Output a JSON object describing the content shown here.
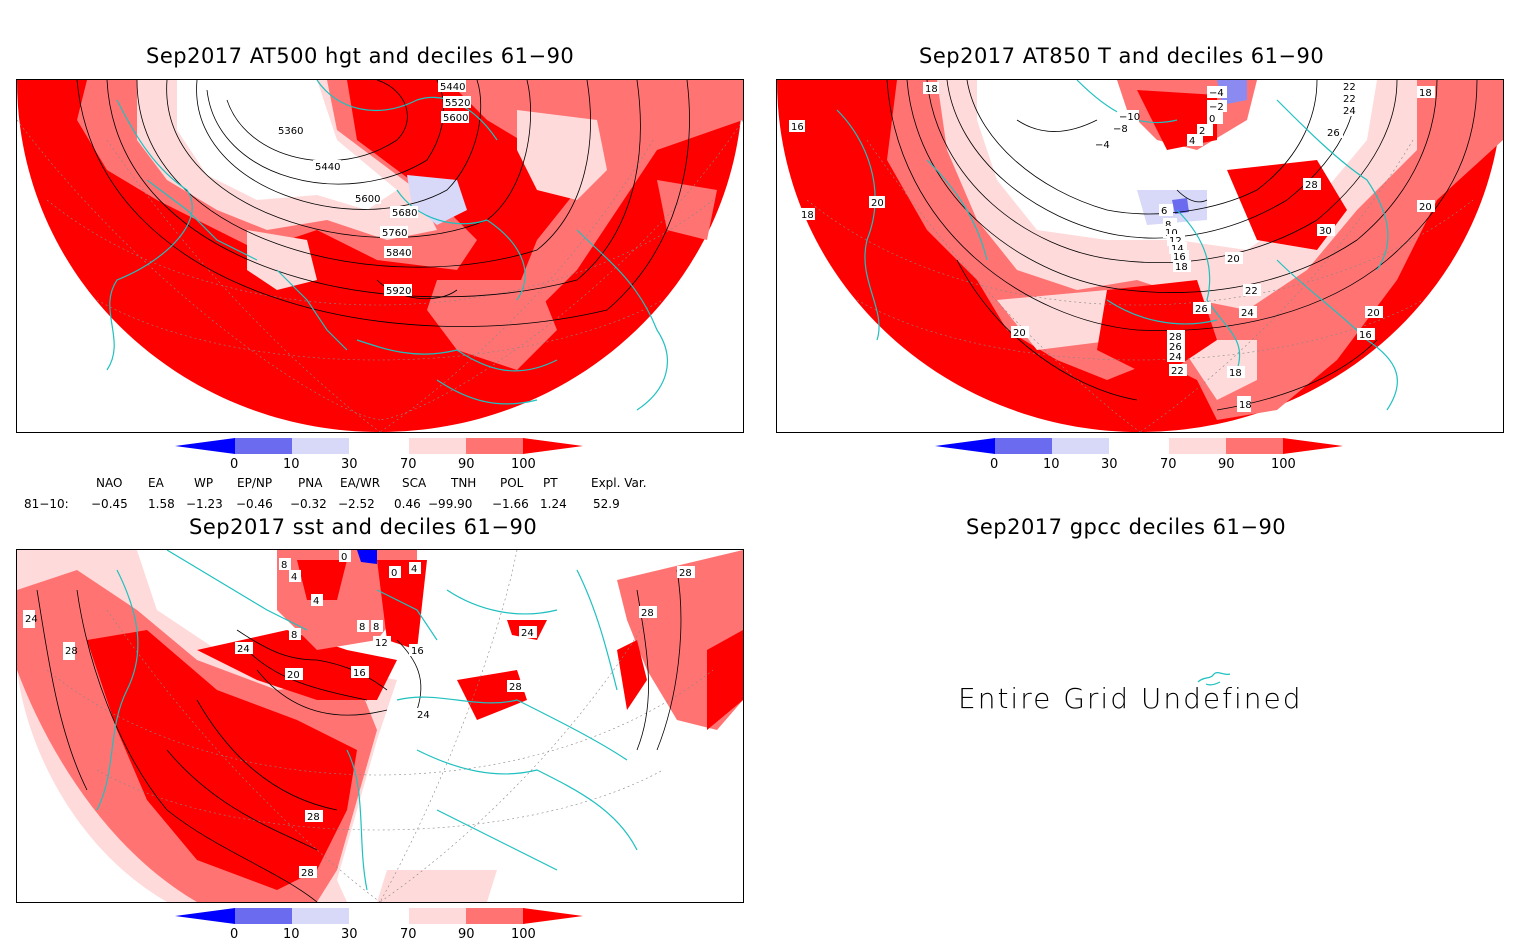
{
  "colors": {
    "d0": "#0000ff",
    "d10": "#6b6bf0",
    "d30": "#d8d8f8",
    "d70": "#ffdada",
    "d90": "#ff7373",
    "d100": "#ff0000",
    "coast": "#20c0c0",
    "contour": "#000000"
  },
  "panels": [
    {
      "title": "Sep2017 AT500 hgt and deciles 61−90",
      "contour_labels": [
        "5440",
        "5520",
        "5600",
        "5360",
        "5440",
        "5600",
        "5680",
        "5760",
        "5840",
        "5920"
      ]
    },
    {
      "title": "Sep2017 AT850 T and deciles 61−90",
      "contour_labels": [
        "18",
        "16",
        "18",
        "20",
        "−4",
        "−2",
        "0",
        "−10",
        "−8",
        "−4",
        "2",
        "4",
        "22",
        "22",
        "24",
        "26",
        "18",
        "28",
        "30",
        "6",
        "8",
        "10",
        "12",
        "14",
        "16",
        "18",
        "20",
        "22",
        "24",
        "26",
        "28",
        "26",
        "24",
        "22",
        "20",
        "18",
        "18",
        "16",
        "20",
        "20"
      ]
    },
    {
      "title": "Sep2017 sst and deciles 61−90",
      "contour_labels": [
        "0",
        "8",
        "4",
        "4",
        "0",
        "4",
        "8",
        "8",
        "8",
        "12",
        "16",
        "16",
        "20",
        "24",
        "24",
        "24",
        "28",
        "28",
        "28",
        "28",
        "28",
        "28",
        "24"
      ]
    },
    {
      "title": "Sep2017 gpcc deciles 61−90",
      "message": "Entire Grid Undefined"
    }
  ],
  "colorbar": {
    "labels": [
      "0",
      "10",
      "30",
      "70",
      "90",
      "100"
    ]
  },
  "teleconnections": {
    "headers": [
      "NAO",
      "EA",
      "WP",
      "EP/NP",
      "PNA",
      "EA/WR",
      "SCA",
      "TNH",
      "POL",
      "PT",
      "Expl. Var."
    ],
    "row_label": "81−10:",
    "values": [
      "−0.45",
      "1.58",
      "−1.23",
      "−0.46",
      "−0.32",
      "−2.52",
      "0.46",
      "−99.90",
      "−1.66",
      "1.24",
      "52.9"
    ]
  }
}
